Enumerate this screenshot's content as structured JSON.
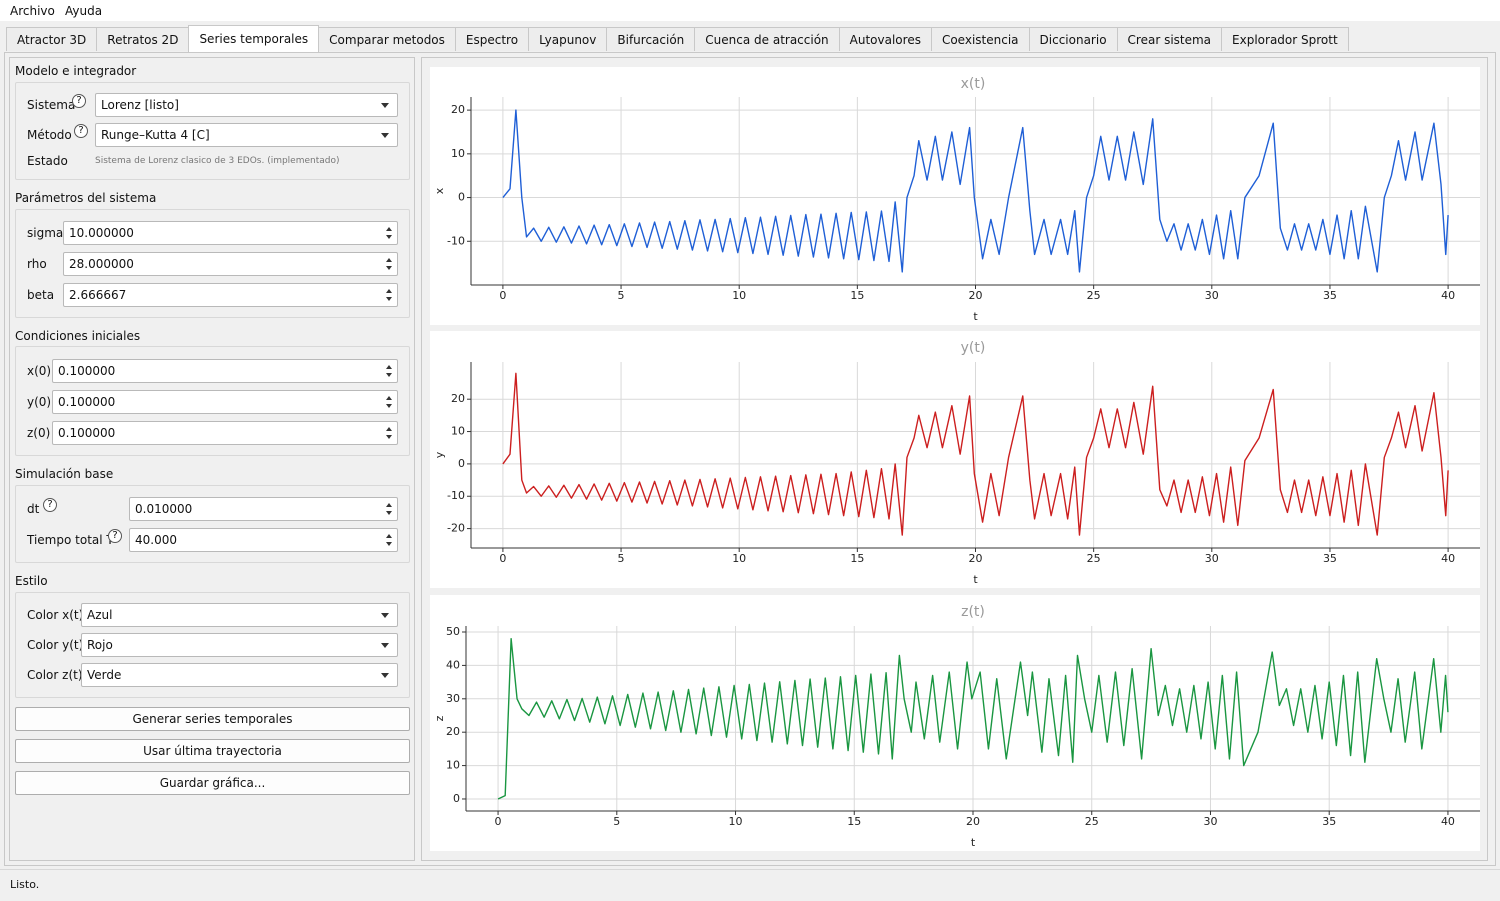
{
  "menu": [
    "Archivo",
    "Ayuda"
  ],
  "tabs": [
    "Atractor 3D",
    "Retratos 2D",
    "Series temporales",
    "Comparar metodos",
    "Espectro",
    "Lyapunov",
    "Bifurcación",
    "Cuenca de atracción",
    "Autovalores",
    "Coexistencia",
    "Diccionario",
    "Crear sistema",
    "Explorador Sprott"
  ],
  "panel": {
    "help_icon": "?",
    "model": {
      "title": "Modelo e integrador",
      "system_label": "Sistema",
      "system_value": "Lorenz [listo]",
      "method_label": "Método",
      "method_value": "Runge–Kutta 4 [C]",
      "state_label": "Estado",
      "state_value": "Sistema de Lorenz clasico de 3 EDOs. (implementado)"
    },
    "params": {
      "title": "Parámetros del sistema",
      "rows": [
        {
          "label": "sigma",
          "value": "10.000000"
        },
        {
          "label": "rho",
          "value": "28.000000"
        },
        {
          "label": "beta",
          "value": "2.666667"
        }
      ]
    },
    "initial": {
      "title": "Condiciones iniciales",
      "rows": [
        {
          "label": "x(0)",
          "value": "0.100000"
        },
        {
          "label": "y(0)",
          "value": "0.100000"
        },
        {
          "label": "z(0)",
          "value": "0.100000"
        }
      ]
    },
    "simulation": {
      "title": "Simulación base",
      "rows": [
        {
          "label": "dt",
          "value": "0.010000"
        },
        {
          "label": "Tiempo total T",
          "value": "40.000"
        }
      ]
    },
    "style": {
      "title": "Estilo",
      "rows": [
        {
          "label": "Color x(t)",
          "value": "Azul"
        },
        {
          "label": "Color y(t)",
          "value": "Rojo"
        },
        {
          "label": "Color z(t)",
          "value": "Verde"
        }
      ]
    },
    "buttons": [
      "Generar series temporales",
      "Usar última trayectoria",
      "Guardar gráfica..."
    ]
  },
  "chart_data": [
    {
      "type": "line",
      "title": "x(t)",
      "xlabel": "t",
      "ylabel": "x",
      "x": [
        0,
        0.3,
        0.55,
        0.8,
        1.0,
        1.3,
        1.62,
        1.94,
        2.26,
        2.58,
        2.9,
        3.22,
        3.54,
        3.86,
        4.18,
        4.5,
        4.82,
        5.14,
        5.46,
        5.78,
        6.1,
        6.42,
        6.74,
        7.06,
        7.38,
        7.7,
        8.02,
        8.34,
        8.66,
        8.98,
        9.3,
        9.62,
        9.94,
        10.26,
        10.58,
        10.9,
        11.22,
        11.54,
        11.86,
        12.18,
        12.5,
        12.82,
        13.14,
        13.46,
        13.78,
        14.1,
        14.42,
        14.74,
        15.06,
        15.38,
        15.7,
        16.02,
        16.34,
        16.6,
        16.9,
        17.1,
        17.4,
        17.6,
        17.95,
        18.3,
        18.6,
        19.0,
        19.35,
        19.75,
        19.95,
        20.3,
        20.65,
        21.0,
        21.4,
        22.0,
        22.3,
        22.5,
        22.9,
        23.2,
        23.6,
        23.9,
        24.2,
        24.4,
        24.7,
        25.0,
        25.3,
        25.65,
        26.0,
        26.35,
        26.7,
        27.1,
        27.5,
        27.8,
        28.1,
        28.4,
        28.7,
        29.0,
        29.3,
        29.6,
        29.9,
        30.2,
        30.5,
        30.8,
        31.1,
        31.4,
        32.0,
        32.6,
        32.9,
        33.2,
        33.5,
        33.8,
        34.1,
        34.4,
        34.7,
        35.0,
        35.3,
        35.6,
        35.9,
        36.2,
        36.5,
        37.0,
        37.3,
        37.6,
        37.9,
        38.2,
        38.6,
        38.9,
        39.4,
        39.7,
        39.9,
        40.0
      ],
      "series": [
        {
          "color": "#1f5fd6",
          "values": [
            0,
            2,
            20,
            0,
            -9,
            -7,
            -10,
            -6.8,
            -10.2,
            -6.7,
            -10.4,
            -6.5,
            -10.6,
            -6.3,
            -10.8,
            -6.2,
            -11,
            -6,
            -11.2,
            -5.8,
            -11.4,
            -5.6,
            -11.6,
            -5.5,
            -11.8,
            -5.3,
            -12,
            -5.1,
            -12.2,
            -5,
            -12.4,
            -4.8,
            -12.6,
            -4.6,
            -12.8,
            -4.5,
            -13,
            -4.3,
            -13.2,
            -4.1,
            -13.4,
            -3.9,
            -13.6,
            -3.8,
            -13.8,
            -3.6,
            -14,
            -3.4,
            -14.2,
            -3.3,
            -14.4,
            -3.1,
            -14.6,
            -1,
            -17,
            0,
            5,
            13,
            4,
            14,
            4,
            15,
            3,
            16,
            0,
            -14,
            -5,
            -13,
            0,
            16,
            -3,
            -13,
            -5,
            -13,
            -5,
            -13,
            -3,
            -17,
            0,
            5,
            14,
            4,
            14,
            4,
            15,
            3,
            18,
            -5,
            -10,
            -6,
            -12,
            -6,
            -12,
            -5,
            -13,
            -4,
            -14,
            -3,
            -14,
            0,
            5,
            17,
            -7,
            -12,
            -6,
            -12,
            -6,
            -12,
            -5,
            -13,
            -4,
            -14,
            -3,
            -14,
            -2,
            -17,
            0,
            5,
            13,
            4,
            15,
            4,
            17,
            3,
            -13,
            -4
          ]
        }
      ],
      "xlim": [
        -1.35,
        41.35
      ],
      "ylim": [
        -20,
        23
      ],
      "xticks": [
        0,
        5,
        10,
        15,
        20,
        25,
        30,
        35,
        40
      ],
      "yticks": [
        -10,
        0,
        10,
        20
      ],
      "grid": true
    },
    {
      "type": "line",
      "title": "y(t)",
      "xlabel": "t",
      "ylabel": "y",
      "x": [
        0,
        0.3,
        0.55,
        0.8,
        1.0,
        1.3,
        1.62,
        1.94,
        2.26,
        2.58,
        2.9,
        3.22,
        3.54,
        3.86,
        4.18,
        4.5,
        4.82,
        5.14,
        5.46,
        5.78,
        6.1,
        6.42,
        6.74,
        7.06,
        7.38,
        7.7,
        8.02,
        8.34,
        8.66,
        8.98,
        9.3,
        9.62,
        9.94,
        10.26,
        10.58,
        10.9,
        11.22,
        11.54,
        11.86,
        12.18,
        12.5,
        12.82,
        13.14,
        13.46,
        13.78,
        14.1,
        14.42,
        14.74,
        15.06,
        15.38,
        15.7,
        16.02,
        16.34,
        16.6,
        16.9,
        17.1,
        17.4,
        17.6,
        17.95,
        18.3,
        18.6,
        19.0,
        19.35,
        19.75,
        19.95,
        20.3,
        20.65,
        21.0,
        21.4,
        22.0,
        22.3,
        22.5,
        22.9,
        23.2,
        23.6,
        23.9,
        24.2,
        24.4,
        24.7,
        25.0,
        25.3,
        25.65,
        26.0,
        26.35,
        26.7,
        27.1,
        27.5,
        27.8,
        28.1,
        28.4,
        28.7,
        29.0,
        29.3,
        29.6,
        29.9,
        30.2,
        30.5,
        30.8,
        31.1,
        31.4,
        32.0,
        32.6,
        32.9,
        33.2,
        33.5,
        33.8,
        34.1,
        34.4,
        34.7,
        35.0,
        35.3,
        35.6,
        35.9,
        36.2,
        36.5,
        37.0,
        37.3,
        37.6,
        37.9,
        38.2,
        38.6,
        38.9,
        39.4,
        39.7,
        39.9,
        40.0
      ],
      "series": [
        {
          "color": "#cc1f1f",
          "values": [
            0,
            3,
            28,
            -5,
            -9,
            -7,
            -10,
            -6.8,
            -10.3,
            -6.6,
            -10.6,
            -6.4,
            -10.9,
            -6.2,
            -11.2,
            -6,
            -11.5,
            -5.8,
            -11.8,
            -5.6,
            -12.1,
            -5.4,
            -12.4,
            -5.2,
            -12.7,
            -5,
            -13,
            -4.8,
            -13.3,
            -4.6,
            -13.6,
            -4.4,
            -13.9,
            -4.2,
            -14.2,
            -4,
            -14.5,
            -3.8,
            -14.8,
            -3.6,
            -15.1,
            -3.4,
            -15.4,
            -3.2,
            -15.7,
            -3,
            -16,
            -2.5,
            -16.3,
            -2,
            -16.6,
            -1.5,
            -17,
            0,
            -22,
            2,
            8,
            15,
            5,
            16,
            5,
            18,
            3,
            21,
            -3,
            -18,
            -3,
            -16,
            2,
            21,
            -5,
            -17,
            -3,
            -16,
            -3,
            -17,
            -1,
            -22,
            2,
            8,
            17,
            5,
            17,
            5,
            19,
            3,
            24,
            -8,
            -13,
            -5,
            -15,
            -5,
            -15,
            -4,
            -16,
            -3,
            -18,
            -1,
            -19,
            1,
            8,
            23,
            -8,
            -15,
            -5,
            -15,
            -5,
            -16,
            -4,
            -16,
            -3,
            -18,
            -2,
            -19,
            0,
            -22,
            2,
            8,
            16,
            5,
            18,
            4,
            22,
            2,
            -16,
            -2
          ]
        }
      ],
      "xlim": [
        -1.35,
        41.35
      ],
      "ylim": [
        -26,
        31.5
      ],
      "xticks": [
        0,
        5,
        10,
        15,
        20,
        25,
        30,
        35,
        40
      ],
      "yticks": [
        -20,
        -10,
        0,
        10,
        20
      ],
      "grid": true
    },
    {
      "type": "line",
      "title": "z(t)",
      "xlabel": "t",
      "ylabel": "z",
      "x": [
        0,
        0.3,
        0.55,
        0.8,
        1.0,
        1.3,
        1.62,
        1.94,
        2.26,
        2.58,
        2.9,
        3.22,
        3.54,
        3.86,
        4.18,
        4.5,
        4.82,
        5.14,
        5.46,
        5.78,
        6.1,
        6.42,
        6.74,
        7.06,
        7.38,
        7.7,
        8.02,
        8.34,
        8.66,
        8.98,
        9.3,
        9.62,
        9.94,
        10.26,
        10.58,
        10.9,
        11.22,
        11.54,
        11.86,
        12.18,
        12.5,
        12.82,
        13.14,
        13.46,
        13.78,
        14.1,
        14.42,
        14.74,
        15.06,
        15.38,
        15.7,
        16.02,
        16.34,
        16.6,
        16.9,
        17.1,
        17.4,
        17.6,
        17.95,
        18.3,
        18.6,
        19.0,
        19.35,
        19.75,
        19.95,
        20.3,
        20.65,
        21.0,
        21.4,
        22.0,
        22.3,
        22.5,
        22.9,
        23.2,
        23.6,
        23.9,
        24.2,
        24.4,
        24.7,
        25.0,
        25.3,
        25.65,
        26.0,
        26.35,
        26.7,
        27.1,
        27.5,
        27.8,
        28.1,
        28.4,
        28.7,
        29.0,
        29.3,
        29.6,
        29.9,
        30.2,
        30.5,
        30.8,
        31.1,
        31.4,
        32.0,
        32.6,
        32.9,
        33.2,
        33.5,
        33.8,
        34.1,
        34.4,
        34.7,
        35.0,
        35.3,
        35.6,
        35.9,
        36.2,
        36.5,
        37.0,
        37.3,
        37.6,
        37.9,
        38.2,
        38.6,
        38.9,
        39.4,
        39.7,
        39.9,
        40.0
      ],
      "series": [
        {
          "color": "#1a9641",
          "values": [
            0,
            1,
            48,
            30,
            27,
            25,
            29,
            24.5,
            29.4,
            24,
            29.8,
            23.5,
            30.1,
            23,
            30.5,
            22.5,
            30.9,
            22,
            31.3,
            21.5,
            31.7,
            21,
            32,
            20.5,
            32.4,
            20,
            32.8,
            19.5,
            33.2,
            19,
            33.6,
            18.5,
            34,
            18,
            34.3,
            17.5,
            34.7,
            17,
            35.1,
            16.5,
            35.5,
            16,
            35.9,
            15.5,
            36.2,
            15,
            36.6,
            14.5,
            37,
            14,
            37.4,
            13.5,
            37.8,
            12,
            43,
            30,
            20,
            35,
            18,
            37,
            17,
            38,
            15,
            41,
            30,
            38,
            15,
            36,
            12,
            41,
            25,
            38,
            14,
            36,
            13,
            37,
            11,
            43,
            30,
            20,
            37,
            17,
            38,
            16,
            39,
            12,
            45,
            25,
            34,
            22,
            33,
            20,
            34,
            18,
            35,
            15,
            37,
            12,
            38,
            10,
            20,
            44,
            28,
            33,
            22,
            33,
            20,
            34,
            18,
            35,
            16,
            37,
            13,
            38,
            11,
            42,
            30,
            20,
            36,
            17,
            38,
            15,
            42,
            20,
            37,
            26
          ]
        }
      ],
      "xlim": [
        -1.35,
        41.35
      ],
      "ylim": [
        -3.6,
        51.8
      ],
      "xticks": [
        0,
        5,
        10,
        15,
        20,
        25,
        30,
        35,
        40
      ],
      "yticks": [
        0,
        10,
        20,
        30,
        40,
        50
      ],
      "grid": true
    }
  ],
  "status": "Listo."
}
